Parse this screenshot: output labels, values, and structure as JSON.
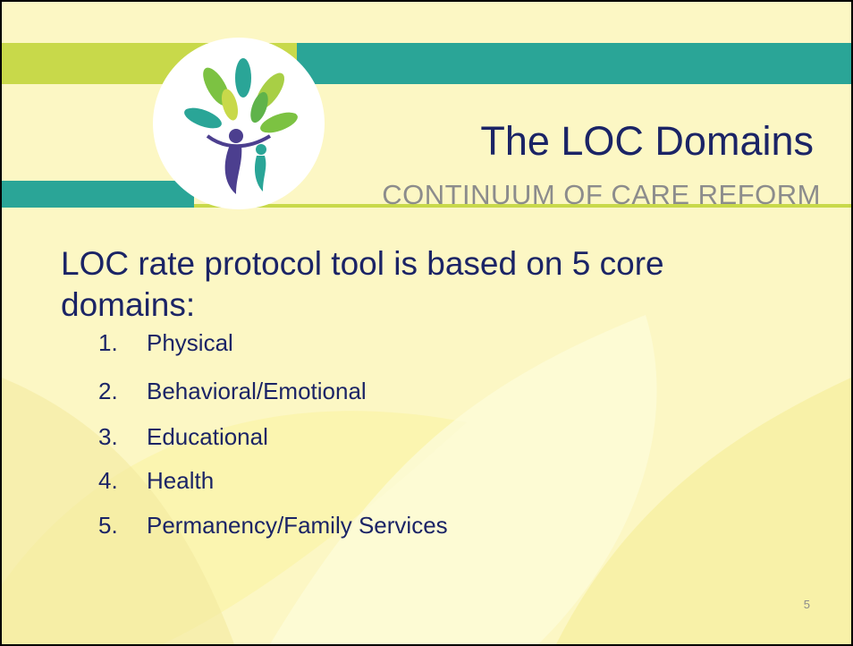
{
  "header": {
    "title": "The LOC Domains",
    "subtitle": "CONTINUUM OF CARE REFORM"
  },
  "body": {
    "intro": "LOC rate protocol tool is based on 5 core domains:",
    "items": [
      {
        "number": "1.",
        "text": "Physical"
      },
      {
        "number": "2.",
        "text": "Behavioral/Emotional"
      },
      {
        "number": "3.",
        "text": "Educational"
      },
      {
        "number": "4.",
        "text": "Health"
      },
      {
        "number": "5.",
        "text": "Permanency/Family Services"
      }
    ]
  },
  "slide_number": "5"
}
